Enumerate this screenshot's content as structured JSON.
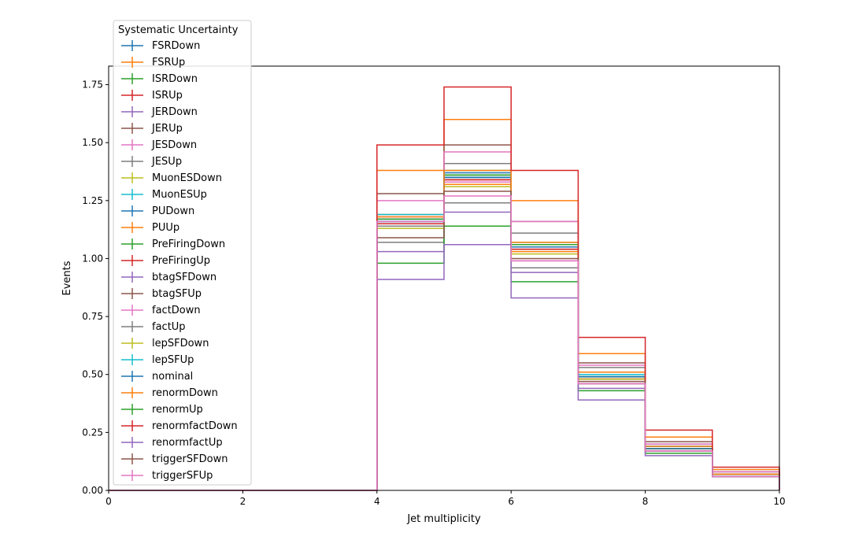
{
  "chart_data": {
    "type": "step",
    "xlabel": "Jet multiplicity",
    "ylabel": "Events",
    "xlim": [
      0,
      10
    ],
    "ylim": [
      0,
      1.83
    ],
    "xticks": [
      0,
      2,
      4,
      6,
      8,
      10
    ],
    "yticks": [
      0.0,
      0.25,
      0.5,
      0.75,
      1.0,
      1.25,
      1.5,
      1.75
    ],
    "ytick_labels": [
      "0.00",
      "0.25",
      "0.50",
      "0.75",
      "1.00",
      "1.25",
      "1.50",
      "1.75"
    ],
    "bin_edges": [
      0,
      1,
      2,
      3,
      4,
      5,
      6,
      7,
      8,
      9,
      10
    ],
    "grid": false,
    "legend": {
      "title": "Systematic Uncertainty",
      "location": "upper-left"
    },
    "series": [
      {
        "name": "FSRDown",
        "color": "#1f77b4",
        "values": [
          0,
          0,
          0,
          0,
          1.17,
          1.37,
          1.06,
          0.51,
          0.19,
          0.07
        ]
      },
      {
        "name": "FSRUp",
        "color": "#ff7f0e",
        "values": [
          0,
          0,
          0,
          0,
          1.38,
          1.6,
          1.25,
          0.59,
          0.23,
          0.09
        ]
      },
      {
        "name": "ISRDown",
        "color": "#2ca02c",
        "values": [
          0,
          0,
          0,
          0,
          1.16,
          1.36,
          1.05,
          0.49,
          0.18,
          0.07
        ]
      },
      {
        "name": "ISRUp",
        "color": "#d62728",
        "values": [
          0,
          0,
          0,
          0,
          1.15,
          1.34,
          1.05,
          0.48,
          0.18,
          0.07
        ]
      },
      {
        "name": "JERDown",
        "color": "#9467bd",
        "values": [
          0,
          0,
          0,
          0,
          1.16,
          1.34,
          1.05,
          0.49,
          0.18,
          0.07
        ]
      },
      {
        "name": "JERUp",
        "color": "#8c564b",
        "values": [
          0,
          0,
          0,
          0,
          1.15,
          1.33,
          1.04,
          0.48,
          0.18,
          0.07
        ]
      },
      {
        "name": "JESDown",
        "color": "#e377c2",
        "values": [
          0,
          0,
          0,
          0,
          1.18,
          1.33,
          0.99,
          0.46,
          0.17,
          0.06
        ]
      },
      {
        "name": "JESUp",
        "color": "#7f7f7f",
        "values": [
          0,
          0,
          0,
          0,
          1.14,
          1.41,
          1.11,
          0.53,
          0.2,
          0.08
        ]
      },
      {
        "name": "MuonESDown",
        "color": "#bcbd22",
        "values": [
          0,
          0,
          0,
          0,
          1.16,
          1.35,
          1.05,
          0.49,
          0.18,
          0.07
        ]
      },
      {
        "name": "MuonESUp",
        "color": "#17becf",
        "values": [
          0,
          0,
          0,
          0,
          1.16,
          1.35,
          1.05,
          0.49,
          0.18,
          0.07
        ]
      },
      {
        "name": "PUDown",
        "color": "#1f77b4",
        "values": [
          0,
          0,
          0,
          0,
          1.16,
          1.35,
          1.05,
          0.49,
          0.18,
          0.07
        ]
      },
      {
        "name": "PUUp",
        "color": "#ff7f0e",
        "values": [
          0,
          0,
          0,
          0,
          1.19,
          1.32,
          1.03,
          0.48,
          0.18,
          0.07
        ]
      },
      {
        "name": "PreFiringDown",
        "color": "#2ca02c",
        "values": [
          0,
          0,
          0,
          0,
          1.17,
          1.36,
          1.06,
          0.49,
          0.18,
          0.07
        ]
      },
      {
        "name": "PreFiringUp",
        "color": "#d62728",
        "values": [
          0,
          0,
          0,
          0,
          1.15,
          1.34,
          1.04,
          0.48,
          0.18,
          0.07
        ]
      },
      {
        "name": "btagSFDown",
        "color": "#9467bd",
        "values": [
          0,
          0,
          0,
          0,
          1.03,
          1.2,
          0.94,
          0.44,
          0.17,
          0.06
        ]
      },
      {
        "name": "btagSFUp",
        "color": "#8c564b",
        "values": [
          0,
          0,
          0,
          0,
          1.28,
          1.49,
          1.16,
          0.55,
          0.21,
          0.08
        ]
      },
      {
        "name": "factDown",
        "color": "#e377c2",
        "values": [
          0,
          0,
          0,
          0,
          1.25,
          1.46,
          1.16,
          0.54,
          0.2,
          0.08
        ]
      },
      {
        "name": "factUp",
        "color": "#7f7f7f",
        "values": [
          0,
          0,
          0,
          0,
          1.07,
          1.24,
          0.96,
          0.46,
          0.17,
          0.06
        ]
      },
      {
        "name": "lepSFDown",
        "color": "#bcbd22",
        "values": [
          0,
          0,
          0,
          0,
          1.13,
          1.31,
          1.02,
          0.48,
          0.18,
          0.07
        ]
      },
      {
        "name": "lepSFUp",
        "color": "#17becf",
        "values": [
          0,
          0,
          0,
          0,
          1.19,
          1.38,
          1.07,
          0.5,
          0.19,
          0.07
        ]
      },
      {
        "name": "nominal",
        "color": "#1f77b4",
        "values": [
          0,
          0,
          0,
          0,
          1.16,
          1.35,
          1.05,
          0.49,
          0.18,
          0.07
        ]
      },
      {
        "name": "renormDown",
        "color": "#ff7f0e",
        "values": [
          0,
          0,
          0,
          0,
          1.18,
          1.38,
          1.07,
          0.51,
          0.19,
          0.07
        ]
      },
      {
        "name": "renormUp",
        "color": "#2ca02c",
        "values": [
          0,
          0,
          0,
          0,
          0.98,
          1.14,
          0.9,
          0.43,
          0.16,
          0.06
        ]
      },
      {
        "name": "renormfactDown",
        "color": "#d62728",
        "values": [
          0,
          0,
          0,
          0,
          1.49,
          1.74,
          1.38,
          0.66,
          0.26,
          0.1
        ]
      },
      {
        "name": "renormfactUp",
        "color": "#9467bd",
        "values": [
          0,
          0,
          0,
          0,
          0.91,
          1.06,
          0.83,
          0.39,
          0.15,
          0.06
        ]
      },
      {
        "name": "triggerSFDown",
        "color": "#8c564b",
        "values": [
          0,
          0,
          0,
          0,
          1.09,
          1.29,
          1.0,
          0.47,
          0.17,
          0.06
        ]
      },
      {
        "name": "triggerSFUp",
        "color": "#e377c2",
        "values": [
          0,
          0,
          0,
          0,
          1.16,
          1.27,
          0.99,
          0.46,
          0.17,
          0.06
        ]
      }
    ]
  }
}
